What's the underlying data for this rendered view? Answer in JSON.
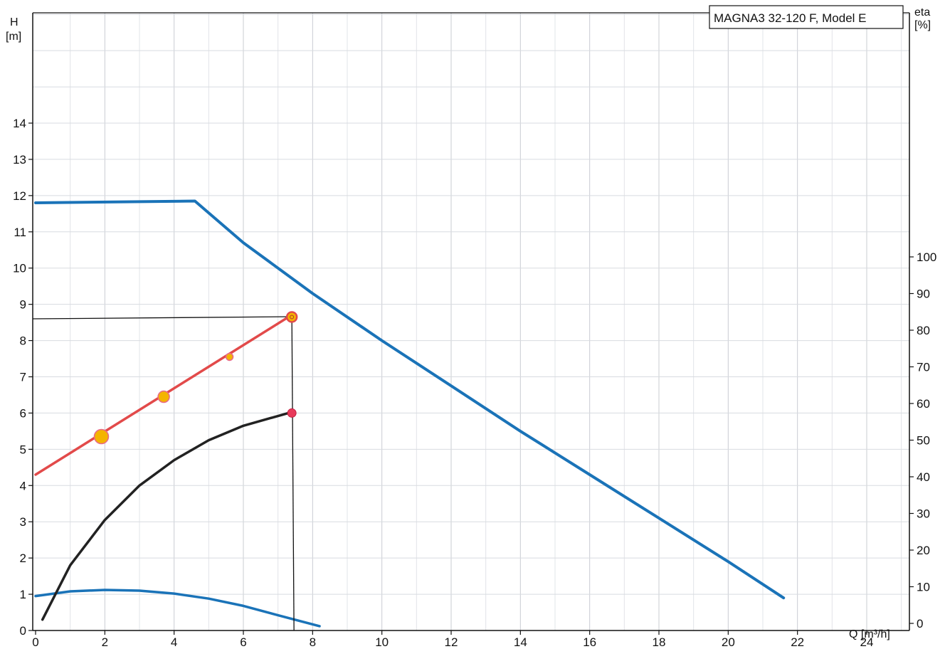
{
  "chart_data": {
    "type": "line",
    "title": "MAGNA3 32-120 F, Model E",
    "xlabel": "Q [m³/h]",
    "ylabel_left": [
      "H",
      "[m]"
    ],
    "ylabel_right": [
      "eta",
      "[%]"
    ],
    "xlim": [
      0,
      24
    ],
    "ylim_left": [
      0,
      14
    ],
    "ylim_right": [
      0,
      100
    ],
    "x_ticks": [
      0,
      2,
      4,
      6,
      8,
      10,
      12,
      14,
      16,
      18,
      20,
      22,
      24
    ],
    "y_left_ticks": [
      0,
      1,
      2,
      3,
      4,
      5,
      6,
      7,
      8,
      9,
      10,
      11,
      12,
      13,
      14
    ],
    "y_right_ticks": [
      0,
      10,
      20,
      30,
      40,
      50,
      60,
      70,
      80,
      90,
      100
    ],
    "grid": true,
    "series": [
      {
        "color": "#1a73b8",
        "axis": "left",
        "points": [
          [
            0,
            11.8
          ],
          [
            4.6,
            11.85
          ],
          [
            6,
            10.7
          ],
          [
            8,
            9.3
          ],
          [
            10,
            8.0
          ],
          [
            12,
            6.75
          ],
          [
            14,
            5.5
          ],
          [
            16,
            4.3
          ],
          [
            18,
            3.1
          ],
          [
            20,
            1.9
          ],
          [
            21.6,
            0.9
          ]
        ]
      },
      {
        "color": "#1a73b8",
        "axis": "left",
        "points": [
          [
            0,
            0.95
          ],
          [
            1,
            1.08
          ],
          [
            2,
            1.12
          ],
          [
            3,
            1.1
          ],
          [
            4,
            1.02
          ],
          [
            5,
            0.88
          ],
          [
            6,
            0.68
          ],
          [
            7,
            0.42
          ],
          [
            8.2,
            0.12
          ]
        ]
      },
      {
        "color": "#222222",
        "axis": "left",
        "points": [
          [
            0.2,
            0.3
          ],
          [
            1,
            1.8
          ],
          [
            2,
            3.05
          ],
          [
            3,
            4.0
          ],
          [
            4,
            4.7
          ],
          [
            5,
            5.25
          ],
          [
            6,
            5.65
          ],
          [
            7.3,
            6.0
          ]
        ]
      },
      {
        "color": "#e24a4a",
        "axis": "left",
        "points": [
          [
            0,
            4.3
          ],
          [
            7.3,
            8.65
          ]
        ]
      }
    ],
    "markers": [
      {
        "x": 1.9,
        "y": 5.35,
        "color": "#f4b400",
        "size": "large"
      },
      {
        "x": 3.7,
        "y": 6.45,
        "color": "#f4b400",
        "size": "medium"
      },
      {
        "x": 5.6,
        "y": 7.55,
        "color": "#f4b400",
        "size": "small"
      },
      {
        "x": 7.4,
        "y": 8.65,
        "color": "#f4b400",
        "size": "ring"
      },
      {
        "x": 7.4,
        "y": 6.0,
        "color": "#e83a5a",
        "size": "dot"
      }
    ],
    "guide_lines": [
      {
        "type": "hline",
        "y": 8.6,
        "from_x": 0,
        "to_x": 7.4
      },
      {
        "type": "vline",
        "x": 7.4,
        "from_y": 8.65,
        "to_y": 0
      }
    ]
  }
}
